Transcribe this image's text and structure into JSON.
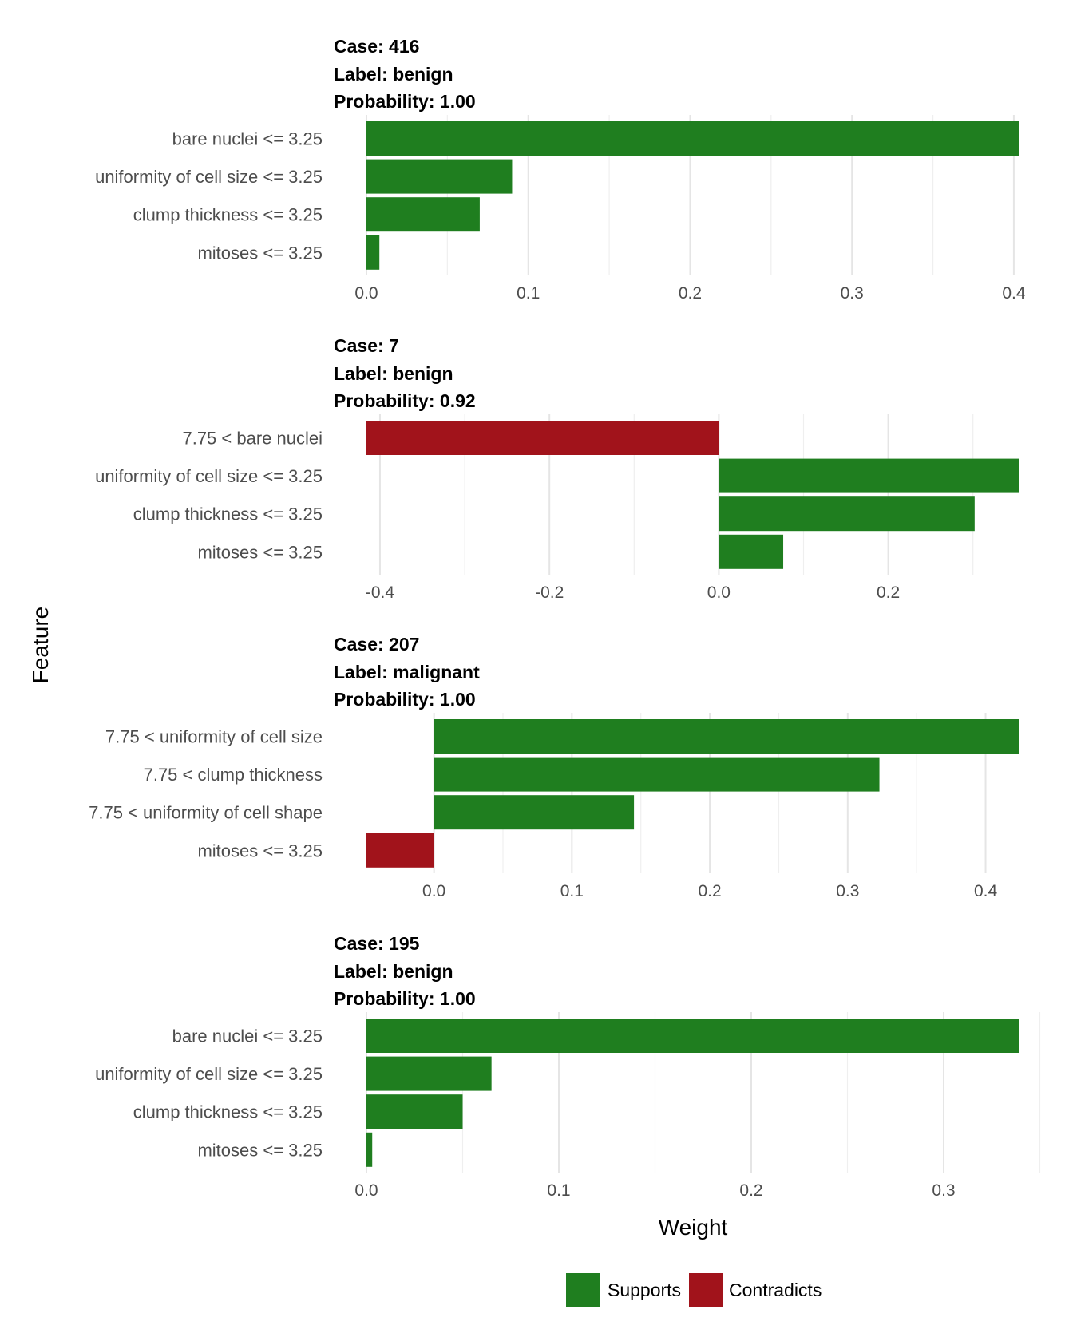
{
  "colors": {
    "supports": "#1f7e1f",
    "contradicts": "#a1131b"
  },
  "axis": {
    "xlabel": "Weight",
    "ylabel": "Feature"
  },
  "legend": [
    {
      "name": "Supports",
      "color": "#1f7e1f"
    },
    {
      "name": "Contradicts",
      "color": "#a1131b"
    }
  ],
  "chart_data": [
    {
      "type": "bar",
      "orientation": "horizontal",
      "title_lines": [
        "Case: 416",
        "Label: benign",
        "Probability: 1.00"
      ],
      "xlim": [
        0,
        0.403
      ],
      "major_ticks": [
        0.0,
        0.1,
        0.2,
        0.3,
        0.4
      ],
      "minor_ticks": [
        0.05,
        0.15,
        0.25,
        0.35
      ],
      "bars": [
        {
          "feature": "bare nuclei <= 3.25",
          "weight": 0.403,
          "effect": "Supports"
        },
        {
          "feature": "uniformity of cell size <= 3.25",
          "weight": 0.09,
          "effect": "Supports"
        },
        {
          "feature": "clump thickness <= 3.25",
          "weight": 0.07,
          "effect": "Supports"
        },
        {
          "feature": "mitoses <= 3.25",
          "weight": 0.008,
          "effect": "Supports"
        }
      ]
    },
    {
      "type": "bar",
      "orientation": "horizontal",
      "title_lines": [
        "Case: 7",
        "Label: benign",
        "Probability: 0.92"
      ],
      "xlim": [
        -0.416,
        0.354
      ],
      "major_ticks": [
        -0.4,
        -0.2,
        0.0,
        0.2
      ],
      "minor_ticks": [
        -0.3,
        -0.1,
        0.1,
        0.3
      ],
      "bars": [
        {
          "feature": "7.75 < bare nuclei",
          "weight": -0.416,
          "effect": "Contradicts"
        },
        {
          "feature": "uniformity of cell size <= 3.25",
          "weight": 0.354,
          "effect": "Supports"
        },
        {
          "feature": "clump thickness <= 3.25",
          "weight": 0.302,
          "effect": "Supports"
        },
        {
          "feature": "mitoses <= 3.25",
          "weight": 0.076,
          "effect": "Supports"
        }
      ]
    },
    {
      "type": "bar",
      "orientation": "horizontal",
      "title_lines": [
        "Case: 207",
        "Label: malignant",
        "Probability: 1.00"
      ],
      "xlim": [
        -0.049,
        0.424
      ],
      "major_ticks": [
        0.0,
        0.1,
        0.2,
        0.3,
        0.4
      ],
      "minor_ticks": [
        0.05,
        0.15,
        0.25,
        0.35
      ],
      "bars": [
        {
          "feature": "7.75 < uniformity of cell size",
          "weight": 0.424,
          "effect": "Supports"
        },
        {
          "feature": "7.75 < clump thickness",
          "weight": 0.323,
          "effect": "Supports"
        },
        {
          "feature": "7.75 < uniformity of cell shape",
          "weight": 0.145,
          "effect": "Supports"
        },
        {
          "feature": "mitoses <= 3.25",
          "weight": -0.049,
          "effect": "Contradicts"
        }
      ]
    },
    {
      "type": "bar",
      "orientation": "horizontal",
      "title_lines": [
        "Case: 195",
        "Label: benign",
        "Probability: 1.00"
      ],
      "xlim": [
        0,
        0.339
      ],
      "major_ticks": [
        0.0,
        0.1,
        0.2,
        0.3
      ],
      "minor_ticks": [
        0.05,
        0.15,
        0.25,
        0.35
      ],
      "bars": [
        {
          "feature": "bare nuclei <= 3.25",
          "weight": 0.339,
          "effect": "Supports"
        },
        {
          "feature": "uniformity of cell size <= 3.25",
          "weight": 0.065,
          "effect": "Supports"
        },
        {
          "feature": "clump thickness <= 3.25",
          "weight": 0.05,
          "effect": "Supports"
        },
        {
          "feature": "mitoses <= 3.25",
          "weight": 0.003,
          "effect": "Supports"
        }
      ]
    }
  ]
}
